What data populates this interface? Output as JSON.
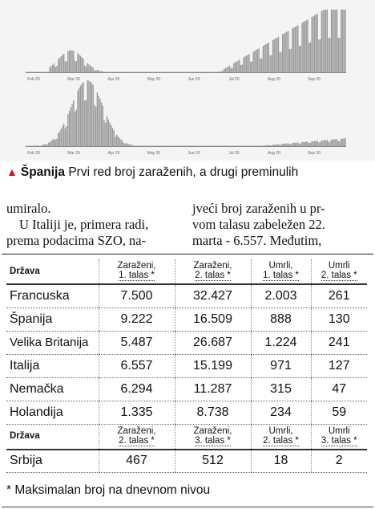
{
  "charts": {
    "axis_labels": [
      "Feb 20",
      "Mar 20",
      "Apr 20",
      "May 20",
      "Jun 20",
      "Jul 20",
      "Aug 20",
      "Sep 20"
    ],
    "bar_color": "#9a9a9a",
    "background": "#f4f4f4"
  },
  "caption": {
    "marker_color": "#d6101c",
    "country": "Španija",
    "text": "Prvi red broj zaraženih, a drugi preminulih"
  },
  "article": {
    "left": [
      "umiralo.",
      "U Italiji je, primera radi,",
      "prema podacima SZO, na-"
    ],
    "right": [
      "jveći broj zaraženih u pr-",
      "vom talasu zabeležen 22.",
      "marta - 6.557. Međutim,"
    ]
  },
  "table": {
    "header": {
      "name": "Država",
      "cols": [
        {
          "l1": "Zaraženi,",
          "l2": "1. talas *"
        },
        {
          "l1": "Zaraženi,",
          "l2": "2. talas *"
        },
        {
          "l1": "Umrli,",
          "l2": "1. talas *"
        },
        {
          "l1": "Umrli",
          "l2": "2. talas *"
        }
      ]
    },
    "rows": [
      {
        "name": "Francuska",
        "values": [
          "7.500",
          "32.427",
          "2.003",
          "261"
        ]
      },
      {
        "name": "Španija",
        "values": [
          "9.222",
          "16.509",
          "888",
          "130"
        ]
      },
      {
        "name": "Velika Britanija",
        "values": [
          "5.487",
          "26.687",
          "1.224",
          "241"
        ]
      },
      {
        "name": "Italija",
        "values": [
          "6.557",
          "15.199",
          "971",
          "127"
        ]
      },
      {
        "name": "Nemačka",
        "values": [
          "6.294",
          "11.287",
          "315",
          "47"
        ]
      },
      {
        "name": "Holandija",
        "values": [
          "1.335",
          "8.738",
          "234",
          "59"
        ]
      }
    ],
    "header2": {
      "name": "Država",
      "cols": [
        {
          "l1": "Zaraženi,",
          "l2": "2. talas *"
        },
        {
          "l1": "Zaraženi,",
          "l2": "3. talas *"
        },
        {
          "l1": "Umrli,",
          "l2": "2. talas *"
        },
        {
          "l1": "Umrli",
          "l2": "3. talas *"
        }
      ]
    },
    "row2": {
      "name": "Srbija",
      "values": [
        "467",
        "512",
        "18",
        "2"
      ]
    }
  },
  "footnote": "* Maksimalan broj na dnevnom nivou"
}
